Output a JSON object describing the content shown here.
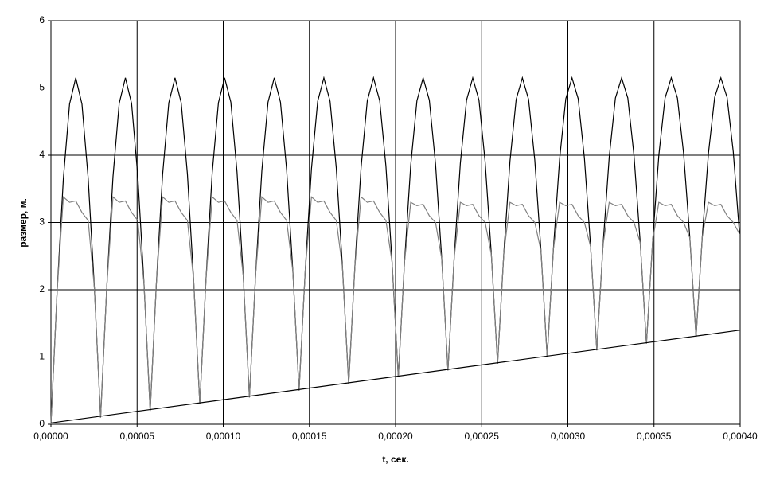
{
  "chart_data": {
    "type": "line",
    "xlabel": "t, сек.",
    "ylabel": "размер, м.",
    "xlim": [
      0,
      0.0004
    ],
    "ylim": [
      0,
      6
    ],
    "xticks": [
      {
        "value": 0,
        "label": "0,00000"
      },
      {
        "value": 5e-05,
        "label": "0,00005"
      },
      {
        "value": 0.0001,
        "label": "0,00010"
      },
      {
        "value": 0.00015,
        "label": "0,00015"
      },
      {
        "value": 0.0002,
        "label": "0,00020"
      },
      {
        "value": 0.00025,
        "label": "0,00025"
      },
      {
        "value": 0.0003,
        "label": "0,00030"
      },
      {
        "value": 0.00035,
        "label": "0,00035"
      },
      {
        "value": 0.0004,
        "label": "0,00040"
      }
    ],
    "yticks": [
      0,
      1,
      2,
      3,
      4,
      5,
      6
    ],
    "grid": true,
    "x": [
      0,
      3.6e-06,
      7.2e-06,
      1.08e-05,
      1.44e-05,
      1.8e-05,
      2.16e-05,
      2.52e-05,
      2.88e-05,
      3.24e-05,
      3.6e-05,
      3.96e-05,
      4.32e-05,
      4.68e-05,
      5.04e-05,
      5.4e-05,
      5.76e-05,
      6.12e-05,
      6.48e-05,
      6.84e-05,
      7.2e-05,
      7.56e-05,
      7.92e-05,
      8.28e-05,
      8.64e-05,
      9e-05,
      9.36e-05,
      9.72e-05,
      0.0001008,
      0.0001044,
      0.000108,
      0.0001116,
      0.0001152,
      0.0001188,
      0.0001224,
      0.000126,
      0.0001296,
      0.0001332,
      0.0001368,
      0.0001404,
      0.000144,
      0.0001476,
      0.0001512,
      0.0001548,
      0.0001584,
      0.000162,
      0.0001656,
      0.0001692,
      0.0001728,
      0.0001764,
      0.00018,
      0.0001836,
      0.0001872,
      0.0001908,
      0.0001944,
      0.000198,
      0.0002016,
      0.0002052,
      0.0002088,
      0.0002124,
      0.000216,
      0.0002196,
      0.0002232,
      0.0002268,
      0.0002304,
      0.000234,
      0.0002376,
      0.0002412,
      0.0002448,
      0.0002484,
      0.000252,
      0.0002556,
      0.0002592,
      0.0002628,
      0.0002664,
      0.00027,
      0.0002736,
      0.0002772,
      0.0002808,
      0.0002844,
      0.000288,
      0.0002916,
      0.0002952,
      0.0002988,
      0.0003024,
      0.000306,
      0.0003096,
      0.0003132,
      0.0003168,
      0.0003204,
      0.000324,
      0.0003276,
      0.0003312,
      0.0003348,
      0.0003384,
      0.000342,
      0.0003456,
      0.0003492,
      0.0003528,
      0.0003564,
      0.00036,
      0.0003636,
      0.0003672,
      0.0003708,
      0.0003744,
      0.000378,
      0.0003816,
      0.0003852,
      0.0003888,
      0.0003924,
      0.000396,
      0.0003996
    ],
    "series": [
      {
        "color": "#000000",
        "values": [
          0,
          1.98,
          3.65,
          4.76,
          5.15,
          4.76,
          3.66,
          2.03,
          0.1,
          2.04,
          3.68,
          4.77,
          5.15,
          4.77,
          3.69,
          2.09,
          0.2,
          2.1,
          3.71,
          4.78,
          5.15,
          4.78,
          3.72,
          2.15,
          0.3,
          2.16,
          3.74,
          4.78,
          5.15,
          4.79,
          3.75,
          2.21,
          0.4,
          2.23,
          3.77,
          4.79,
          5.15,
          4.79,
          3.78,
          2.27,
          0.5,
          2.29,
          3.8,
          4.8,
          5.15,
          4.8,
          3.81,
          2.33,
          0.6,
          2.35,
          3.82,
          4.81,
          5.15,
          4.81,
          3.84,
          2.4,
          0.7,
          2.41,
          3.85,
          4.81,
          5.15,
          4.82,
          3.87,
          2.46,
          0.8,
          2.47,
          3.88,
          4.82,
          5.15,
          4.82,
          3.9,
          2.52,
          0.9,
          2.53,
          3.91,
          4.83,
          5.15,
          4.83,
          3.93,
          2.58,
          1.0,
          2.6,
          3.94,
          4.84,
          5.15,
          4.84,
          3.96,
          2.64,
          1.1,
          2.66,
          3.97,
          4.85,
          5.15,
          4.85,
          3.99,
          2.7,
          1.2,
          2.72,
          4.0,
          4.85,
          5.15,
          4.85,
          4.02,
          2.77,
          1.3,
          2.78,
          4.03,
          4.86,
          5.15,
          4.86,
          4.05,
          2.83
        ]
      },
      {
        "color": "#808080",
        "values": [
          0,
          1.98,
          3.38,
          3.3,
          3.32,
          3.15,
          3.03,
          2.03,
          0.1,
          2.04,
          3.38,
          3.3,
          3.32,
          3.15,
          3.03,
          2.09,
          0.2,
          2.1,
          3.38,
          3.3,
          3.32,
          3.15,
          3.03,
          2.15,
          0.3,
          2.16,
          3.38,
          3.3,
          3.32,
          3.15,
          3.03,
          2.21,
          0.4,
          2.23,
          3.38,
          3.3,
          3.32,
          3.15,
          3.03,
          2.27,
          0.5,
          2.29,
          3.38,
          3.3,
          3.32,
          3.15,
          3.03,
          2.33,
          0.6,
          2.35,
          3.38,
          3.3,
          3.32,
          3.15,
          3.03,
          2.4,
          0.7,
          2.41,
          3.3,
          3.25,
          3.27,
          3.1,
          3.0,
          2.46,
          0.8,
          2.47,
          3.3,
          3.25,
          3.27,
          3.1,
          3.0,
          2.52,
          0.9,
          2.53,
          3.3,
          3.25,
          3.27,
          3.1,
          3.0,
          2.58,
          1.0,
          2.6,
          3.3,
          3.25,
          3.27,
          3.1,
          3.0,
          2.64,
          1.1,
          2.66,
          3.3,
          3.25,
          3.27,
          3.1,
          3.0,
          2.7,
          1.2,
          2.72,
          3.3,
          3.25,
          3.27,
          3.1,
          3.0,
          2.77,
          1.3,
          2.78,
          3.3,
          3.25,
          3.27,
          3.1,
          3.0,
          2.83
        ]
      },
      {
        "color": "#000000",
        "x": [
          0,
          0.0004
        ],
        "values": [
          0.02,
          1.4
        ]
      }
    ]
  }
}
